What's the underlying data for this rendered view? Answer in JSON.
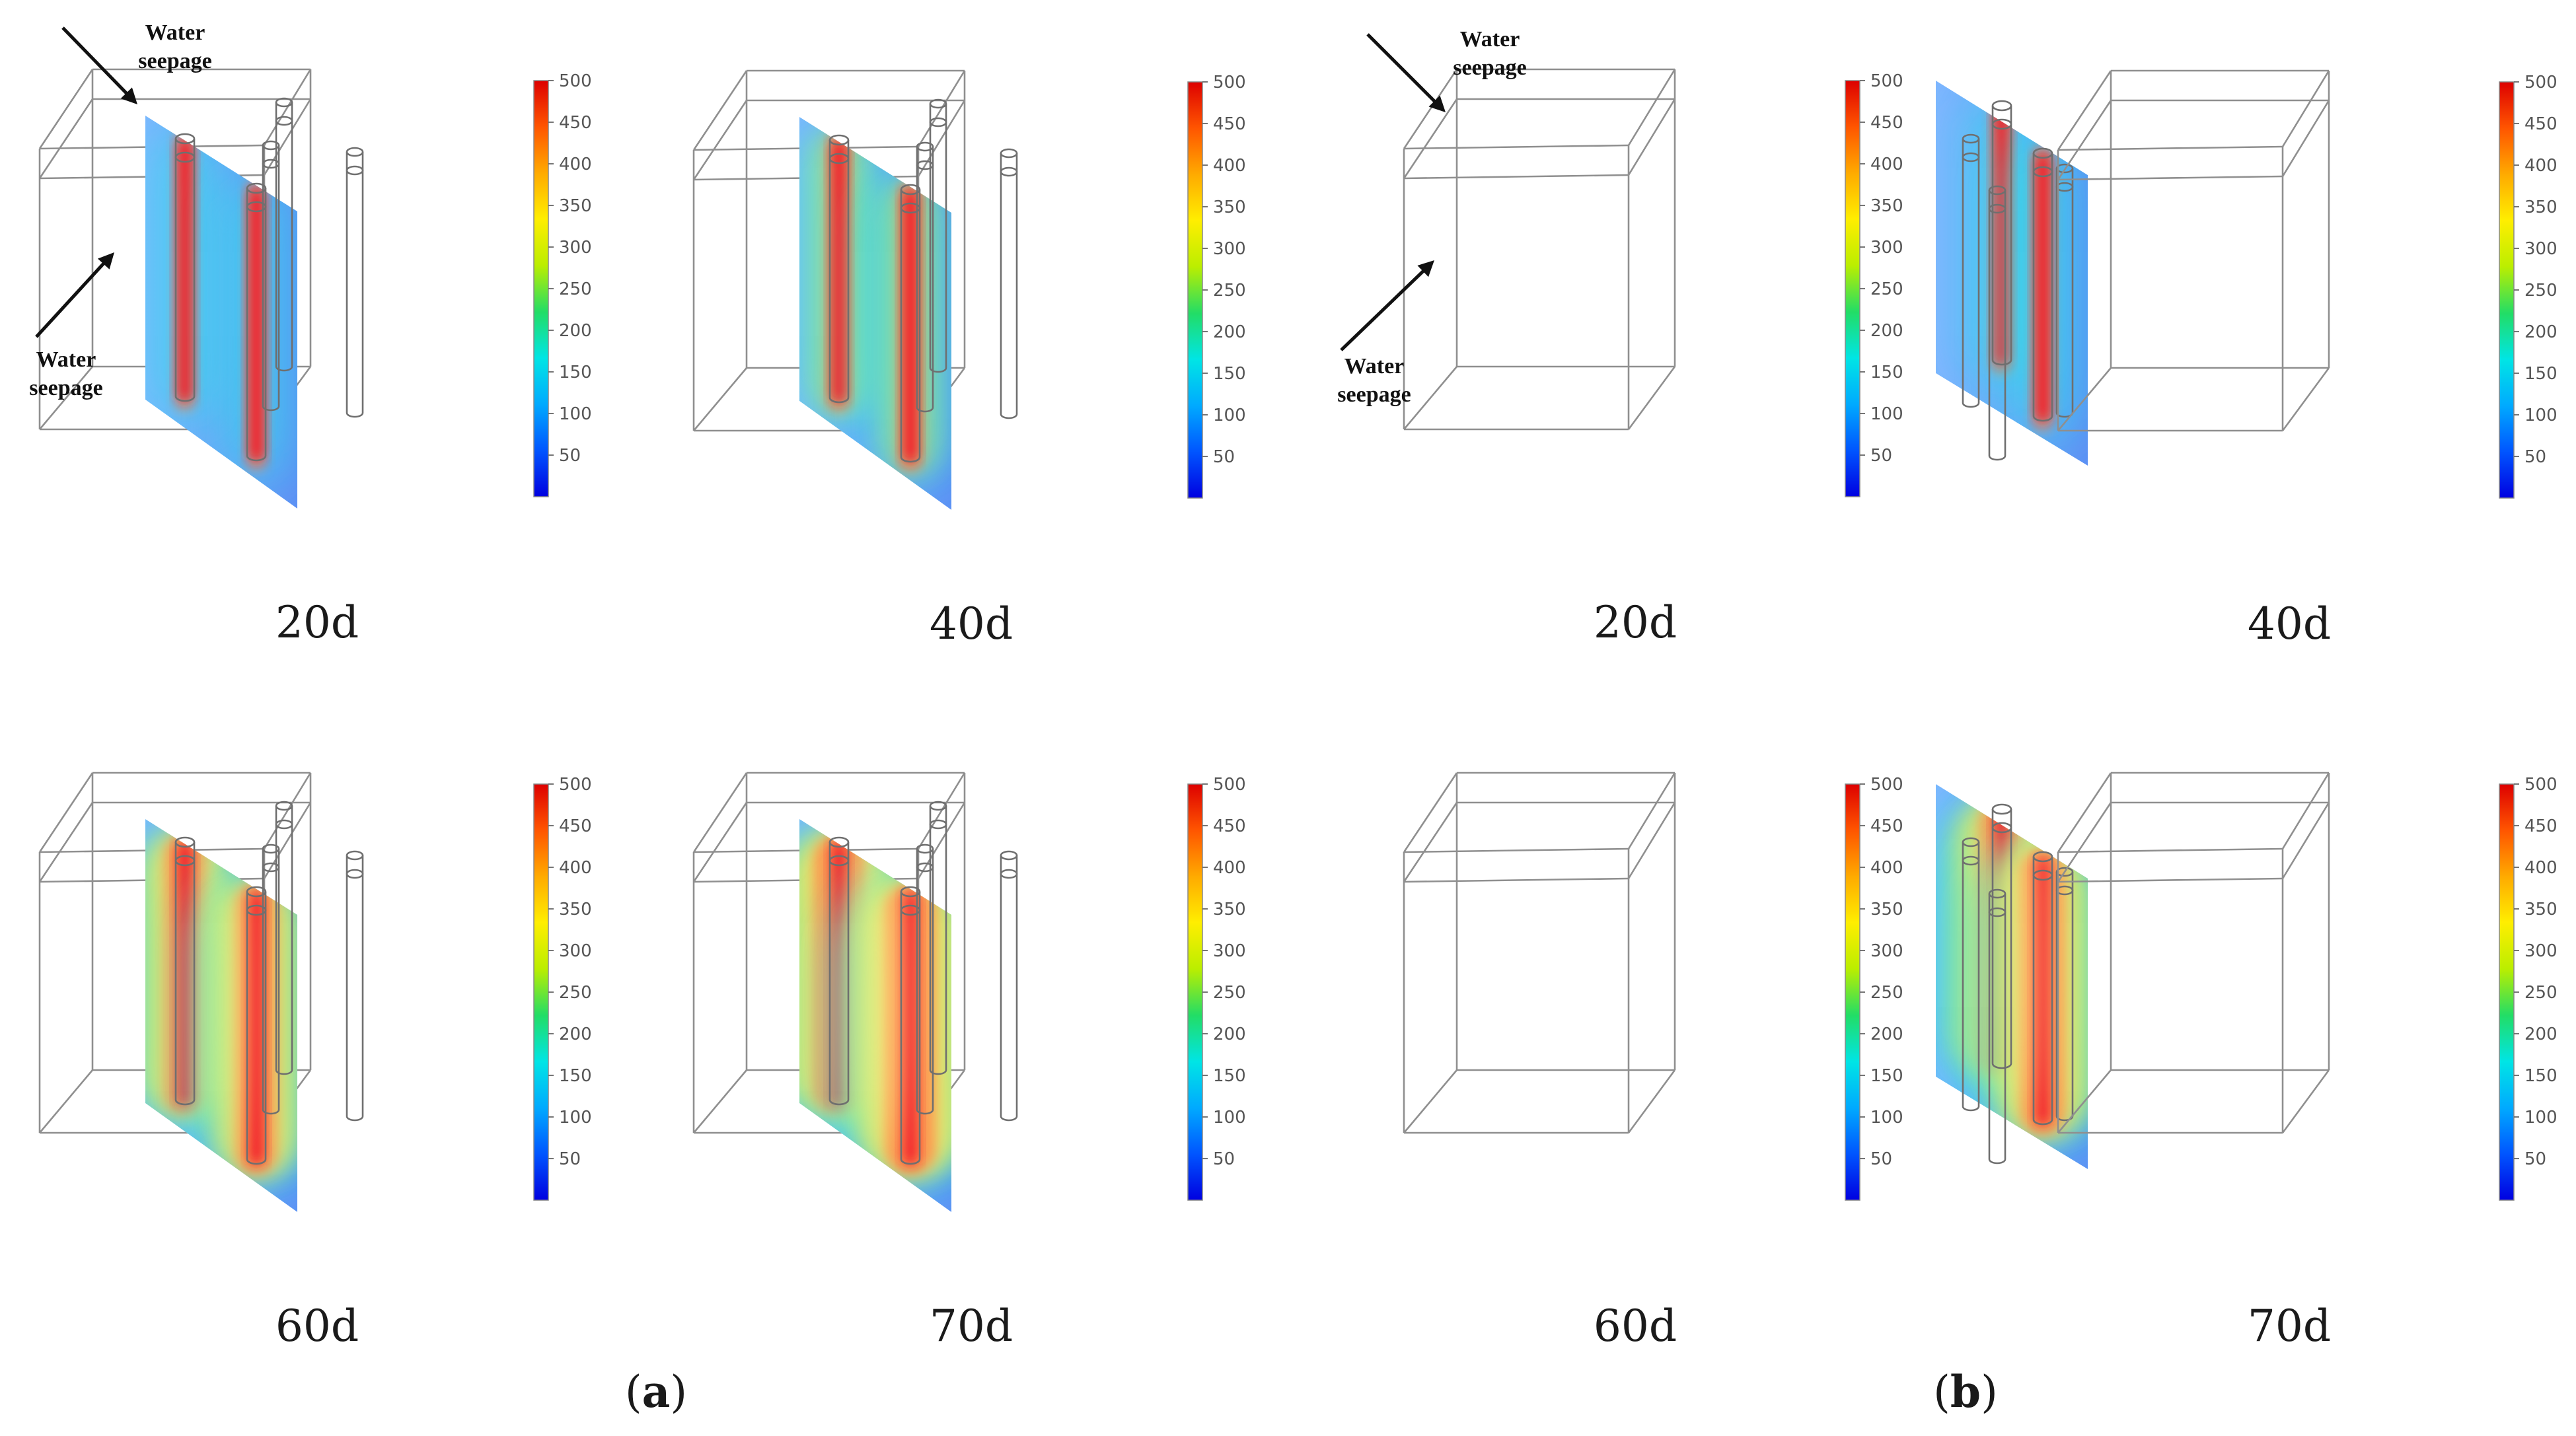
{
  "colorbar": {
    "ticks": [
      "500",
      "450",
      "400",
      "350",
      "300",
      "250",
      "200",
      "150",
      "100",
      "50"
    ],
    "gradient": [
      "#0000e0",
      "#0055ff",
      "#00aaff",
      "#00e5e5",
      "#22dd66",
      "#bbee00",
      "#ffee00",
      "#ffaa00",
      "#ff5500",
      "#dd0000"
    ],
    "max": 500,
    "min": 0
  },
  "panels": [
    {
      "id": "a1",
      "group": "a",
      "time_label": "20d",
      "orientation": "side",
      "spread": 0.16,
      "annotation": true
    },
    {
      "id": "a2",
      "group": "a",
      "time_label": "40d",
      "orientation": "side",
      "spread": 0.28,
      "annotation": false
    },
    {
      "id": "b1",
      "group": "b",
      "time_label": "20d",
      "orientation": "center",
      "spread": 0.18,
      "annotation": true
    },
    {
      "id": "b2",
      "group": "b",
      "time_label": "40d",
      "orientation": "center",
      "spread": 0.32,
      "annotation": false
    },
    {
      "id": "a3",
      "group": "a",
      "time_label": "60d",
      "orientation": "side",
      "spread": 0.55,
      "annotation": false
    },
    {
      "id": "a4",
      "group": "a",
      "time_label": "70d",
      "orientation": "side",
      "spread": 0.72,
      "annotation": false
    },
    {
      "id": "b3",
      "group": "b",
      "time_label": "60d",
      "orientation": "center",
      "spread": 0.62,
      "annotation": false
    },
    {
      "id": "b4",
      "group": "b",
      "time_label": "70d",
      "orientation": "center",
      "spread": 0.82,
      "annotation": false
    }
  ],
  "annotations": {
    "top_line1": "Water",
    "top_line2": "seepage",
    "side_line1": "Water",
    "side_line2": "seepage"
  },
  "subfigures": {
    "a_open": "(",
    "a_letter": "a",
    "a_close": ")",
    "b_open": "(",
    "b_letter": "b",
    "b_close": ")"
  }
}
